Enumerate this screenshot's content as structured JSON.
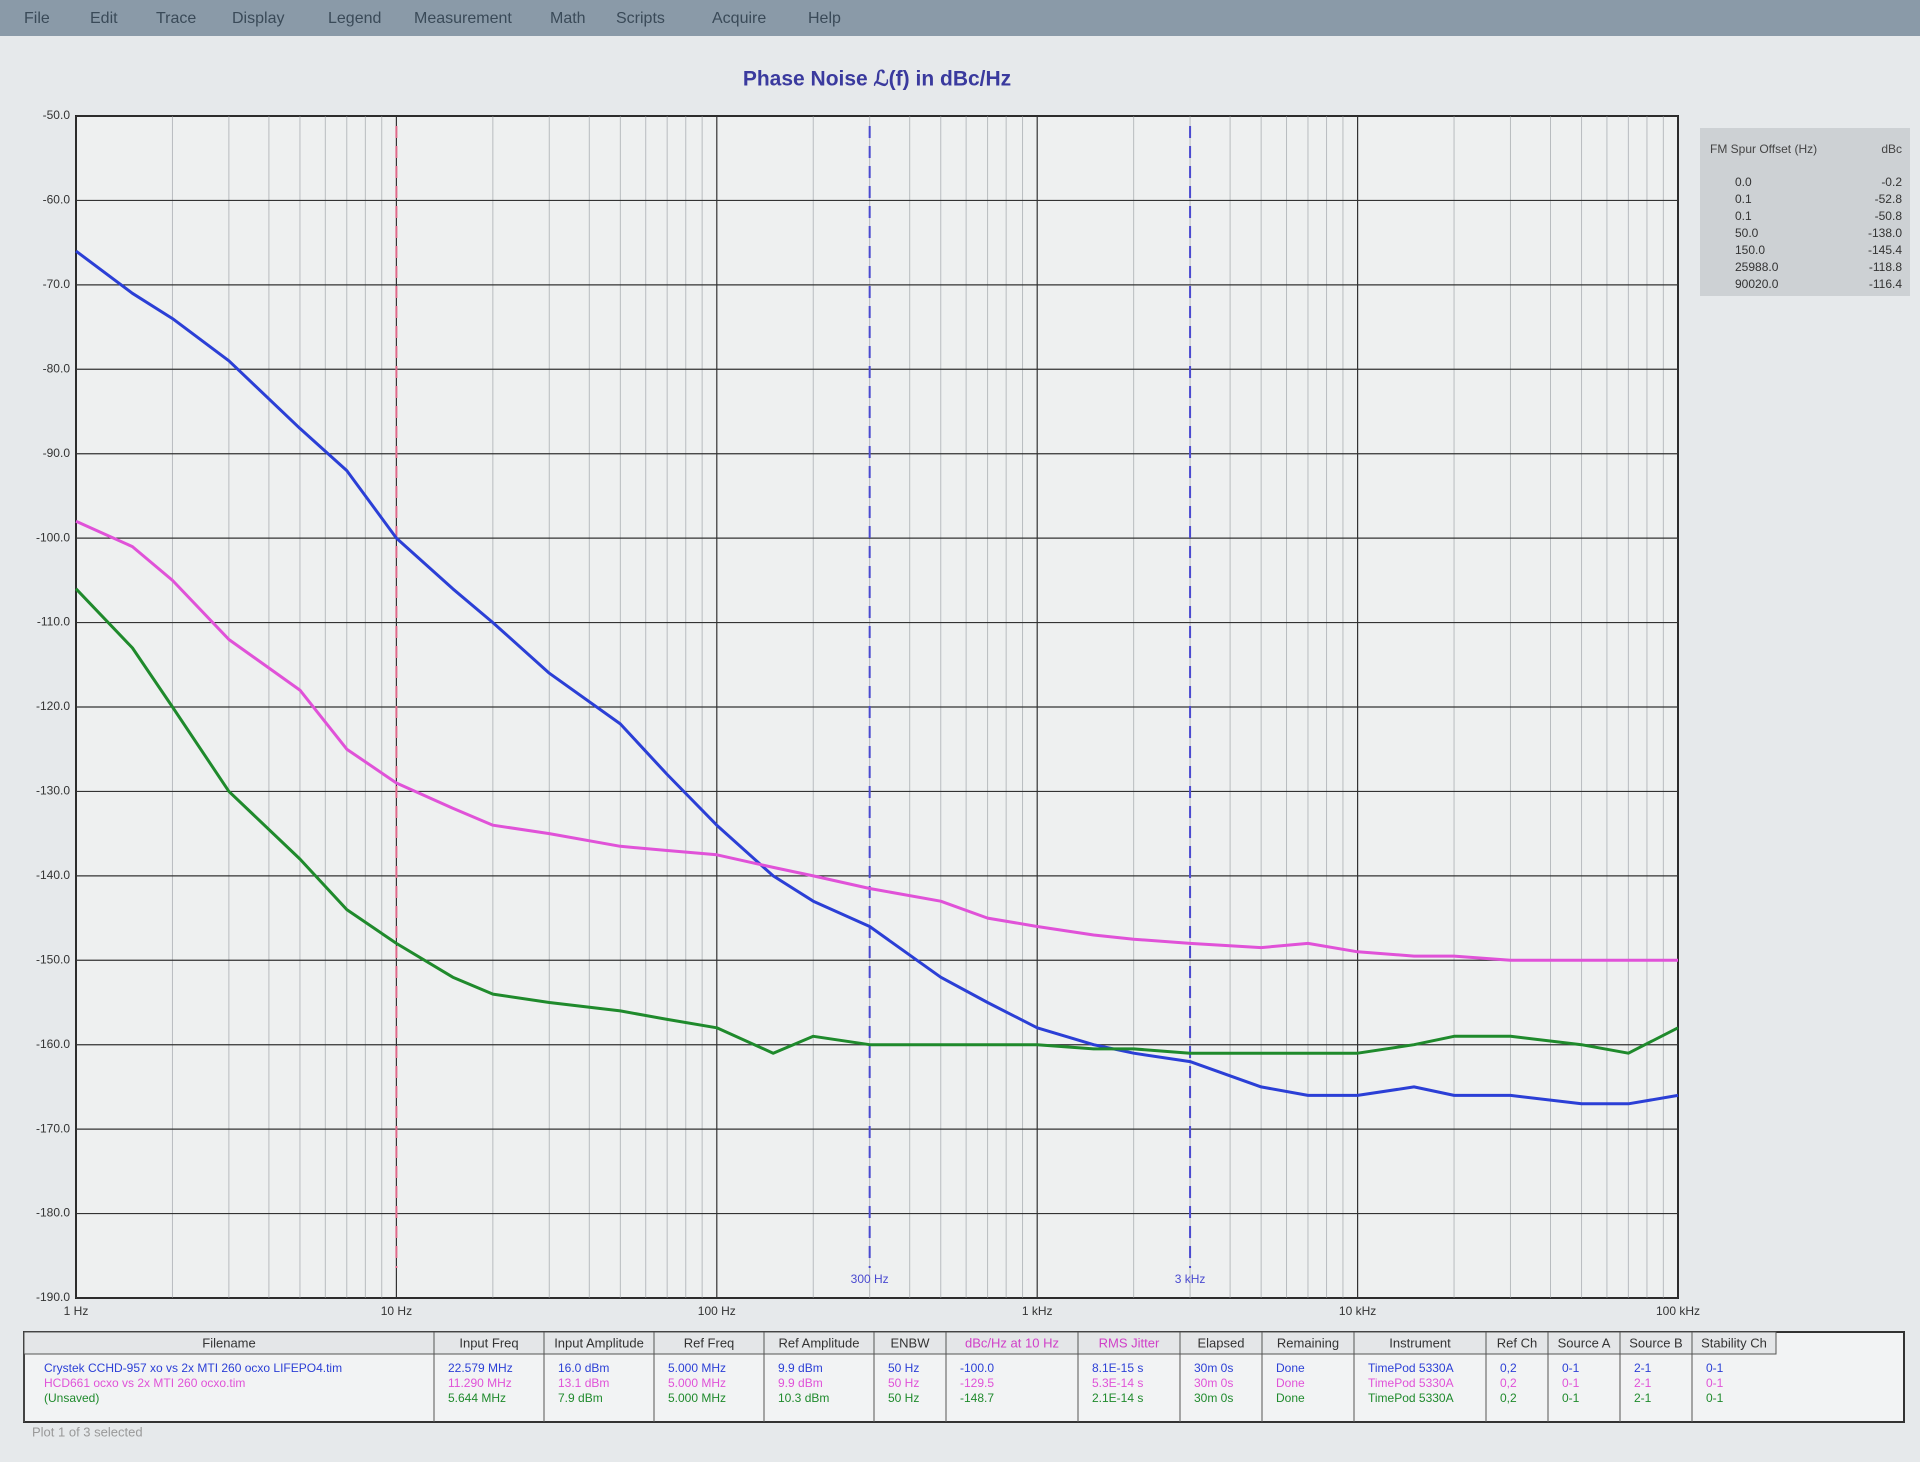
{
  "menu": [
    "File",
    "Edit",
    "Trace",
    "Display",
    "Legend",
    "Measurement",
    "Math",
    "Scripts",
    "Acquire",
    "Help"
  ],
  "chart_data": {
    "type": "line",
    "title": "Phase Noise ℒ(f) in dBc/Hz",
    "log_x": true,
    "grid": true,
    "x": [
      1,
      1.5,
      2,
      3,
      5,
      7,
      10,
      15,
      20,
      30,
      50,
      70,
      100,
      150,
      200,
      300,
      500,
      700,
      1000,
      1500,
      2000,
      3000,
      5000,
      7000,
      10000,
      15000,
      20000,
      30000,
      50000,
      70000,
      100000
    ],
    "series": [
      {
        "name": "Crystek CCHD-957 xo vs 2x MTI 260 ocxo LIFEPO4.tim",
        "color": "#2b3fd6",
        "values": [
          -66,
          -71,
          -74,
          -79,
          -87,
          -92,
          -100,
          -106,
          -110,
          -116,
          -122,
          -128,
          -134,
          -140,
          -143,
          -146,
          -152,
          -155,
          -158,
          -160,
          -161,
          -162,
          -165,
          -166,
          -166,
          -165,
          -166,
          -166,
          -167,
          -167,
          -166
        ]
      },
      {
        "name": "HCD661 ocxo vs 2x MTI 260 ocxo.tim",
        "color": "#e052d8",
        "values": [
          -98,
          -101,
          -105,
          -112,
          -118,
          -125,
          -129,
          -132,
          -134,
          -135,
          -136.5,
          -137,
          -137.5,
          -139,
          -140,
          -141.5,
          -143,
          -145,
          -146,
          -147,
          -147.5,
          -148,
          -148.5,
          -148,
          -149,
          -149.5,
          -149.5,
          -150,
          -150,
          -150,
          -150
        ]
      },
      {
        "name": "(Unsaved)",
        "color": "#1f8a2c",
        "values": [
          -106,
          -113,
          -120,
          -130,
          -138,
          -144,
          -148,
          -152,
          -154,
          -155,
          -156,
          -157,
          -158,
          -161,
          -159,
          -160,
          -160,
          -160,
          -160,
          -160.5,
          -160.5,
          -161,
          -161,
          -161,
          -161,
          -160,
          -159,
          -159,
          -160,
          -161,
          -158
        ]
      }
    ],
    "markers": [
      {
        "value": 10,
        "color": "#e06a8a"
      },
      {
        "value": 300,
        "label": "300 Hz",
        "color": "#4a4ad0"
      },
      {
        "value": 3000,
        "label": "3 kHz",
        "color": "#4a4ad0"
      }
    ],
    "xlim": [
      1,
      100000
    ],
    "xticks": [
      {
        "value": 1,
        "label": "1 Hz"
      },
      {
        "value": 10,
        "label": "10 Hz"
      },
      {
        "value": 100,
        "label": "100 Hz"
      },
      {
        "value": 1000,
        "label": "1 kHz"
      },
      {
        "value": 10000,
        "label": "10 kHz"
      },
      {
        "value": 100000,
        "label": "100 kHz"
      }
    ],
    "ylim": [
      -190,
      -50
    ],
    "yticks": [
      {
        "value": -50,
        "label": "-50.0"
      },
      {
        "value": -60,
        "label": "-60.0"
      },
      {
        "value": -70,
        "label": "-70.0"
      },
      {
        "value": -80,
        "label": "-80.0"
      },
      {
        "value": -90,
        "label": "-90.0"
      },
      {
        "value": -100,
        "label": "-100.0"
      },
      {
        "value": -110,
        "label": "-110.0"
      },
      {
        "value": -120,
        "label": "-120.0"
      },
      {
        "value": -130,
        "label": "-130.0"
      },
      {
        "value": -140,
        "label": "-140.0"
      },
      {
        "value": -150,
        "label": "-150.0"
      },
      {
        "value": -160,
        "label": "-160.0"
      },
      {
        "value": -170,
        "label": "-170.0"
      },
      {
        "value": -180,
        "label": "-180.0"
      },
      {
        "value": -190,
        "label": "-190.0"
      }
    ]
  },
  "spur_table": {
    "headers": [
      "FM Spur Offset (Hz)",
      "dBc"
    ],
    "rows": [
      [
        "0.0",
        "-0.2"
      ],
      [
        "0.1",
        "-52.8"
      ],
      [
        "0.1",
        "-50.8"
      ],
      [
        "50.0",
        "-138.0"
      ],
      [
        "150.0",
        "-145.4"
      ],
      [
        "25988.0",
        "-118.8"
      ],
      [
        "90020.0",
        "-116.4"
      ]
    ]
  },
  "trace_table": {
    "headers": [
      "Filename",
      "Input Freq",
      "Input Amplitude",
      "Ref Freq",
      "Ref Amplitude",
      "ENBW",
      "dBc/Hz at 10 Hz",
      "RMS Jitter",
      "Elapsed",
      "Remaining",
      "Instrument",
      "Ref Ch",
      "Source A",
      "Source B",
      "Stability Ch"
    ],
    "rows": [
      [
        "Crystek CCHD-957 xo vs 2x MTI 260 ocxo LIFEPO4.tim",
        "22.579 MHz",
        "16.0 dBm",
        "5.000 MHz",
        "9.9 dBm",
        "50 Hz",
        "-100.0",
        "8.1E-15 s",
        "30m 0s",
        "Done",
        "TimePod 5330A",
        "0,2",
        "0-1",
        "2-1",
        "0-1"
      ],
      [
        "HCD661 ocxo vs 2x MTI 260 ocxo.tim",
        "11.290 MHz",
        "13.1 dBm",
        "5.000 MHz",
        "9.9 dBm",
        "50 Hz",
        "-129.5",
        "5.3E-14 s",
        "30m 0s",
        "Done",
        "TimePod 5330A",
        "0,2",
        "0-1",
        "2-1",
        "0-1"
      ],
      [
        "(Unsaved)",
        "5.644 MHz",
        "7.9 dBm",
        "5.000 MHz",
        "10.3 dBm",
        "50 Hz",
        "-148.7",
        "2.1E-14 s",
        "30m 0s",
        "Done",
        "TimePod 5330A",
        "0,2",
        "0-1",
        "2-1",
        "0-1"
      ]
    ]
  },
  "status": "Plot 1 of 3 selected"
}
